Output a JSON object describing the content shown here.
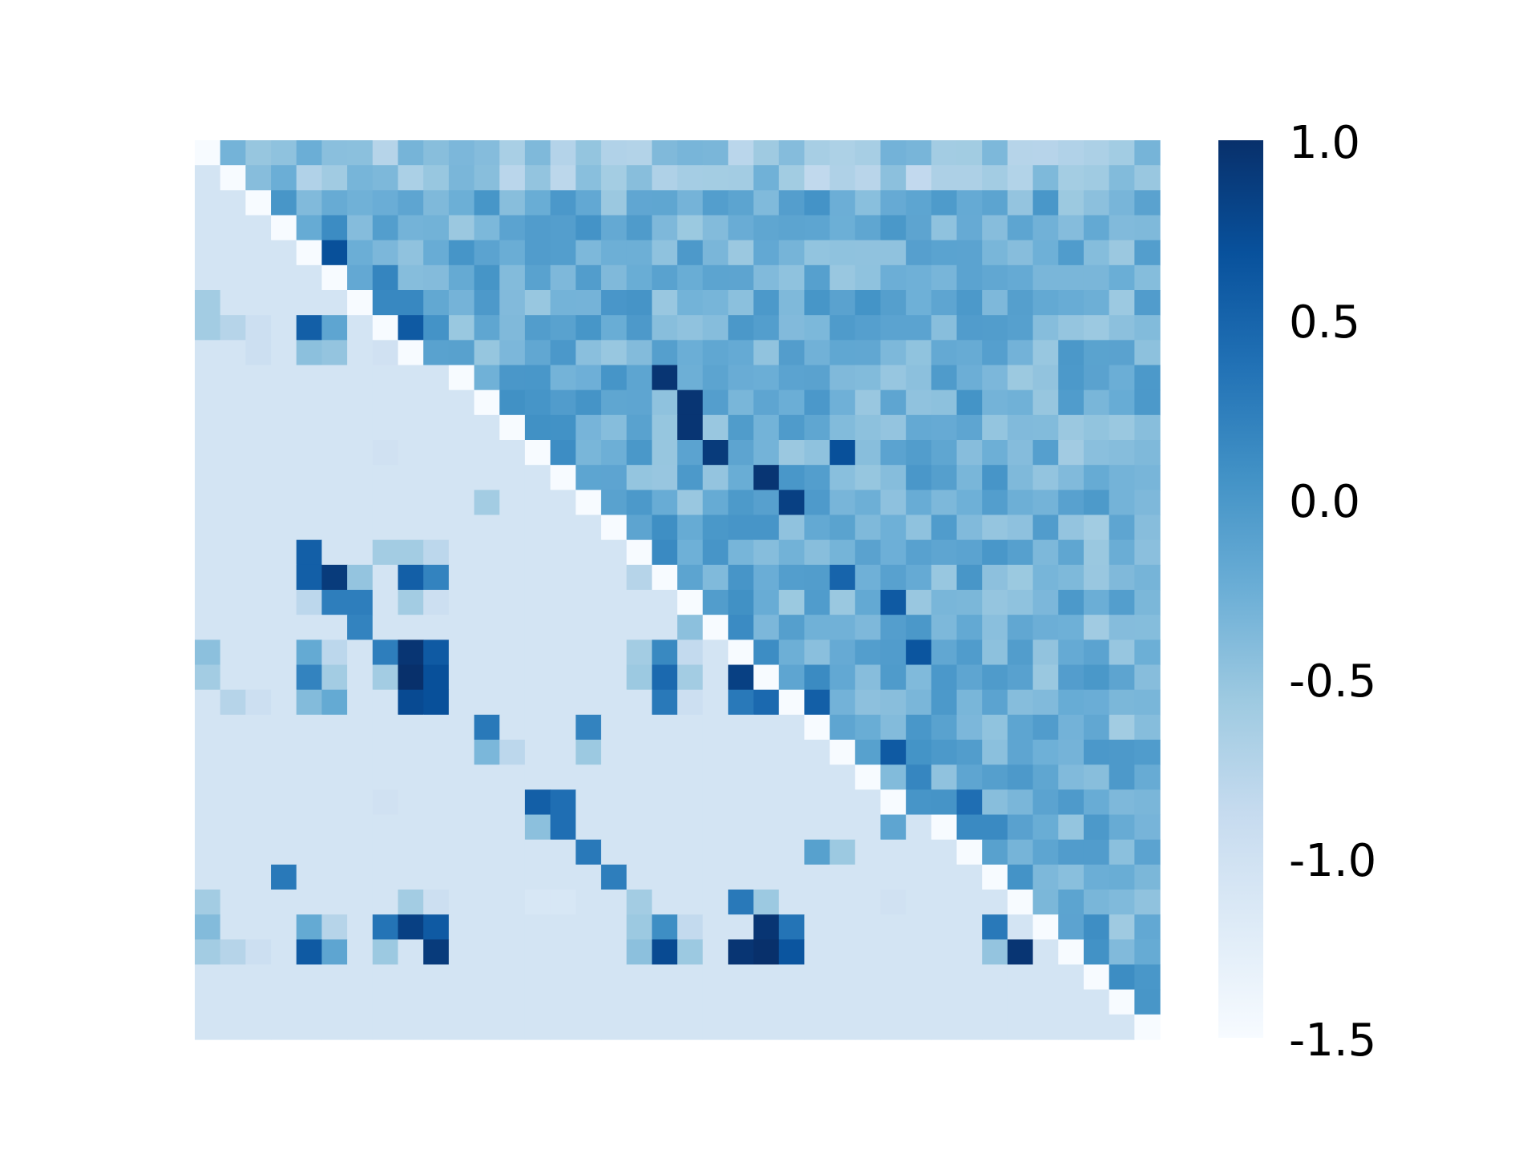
{
  "chart_data": {
    "type": "heatmap",
    "title": "",
    "xlabel": "",
    "ylabel": "",
    "rows": 36,
    "cols": 38,
    "colormap": "Blues",
    "colorbar": {
      "vmin": -1.5,
      "vmax": 1.0,
      "ticks": [
        1.0,
        0.5,
        0.0,
        -0.5,
        -1.0,
        -1.5
      ],
      "tick_labels": [
        "1.0",
        "0.5",
        "0.0",
        "-0.5",
        "-1.0",
        "-1.5"
      ]
    },
    "colors": {
      "low": "#f7fbff",
      "high": "#08306b",
      "lower_triangle_background": "#d1e2f2"
    },
    "lower_triangle_fill_value": -1.05,
    "lower_triangle_cells": [
      [
        6,
        0,
        -0.6
      ],
      [
        7,
        0,
        -0.6
      ],
      [
        7,
        1,
        -0.75
      ],
      [
        7,
        2,
        -0.95
      ],
      [
        7,
        4,
        0.55
      ],
      [
        7,
        5,
        -0.15
      ],
      [
        7,
        7,
        -0.65
      ],
      [
        8,
        2,
        -0.95
      ],
      [
        8,
        4,
        -0.45
      ],
      [
        8,
        5,
        -0.5
      ],
      [
        8,
        7,
        -1.0
      ],
      [
        8,
        8,
        0.8
      ],
      [
        12,
        7,
        -1.0
      ],
      [
        14,
        11,
        -0.6
      ],
      [
        16,
        4,
        0.55
      ],
      [
        16,
        7,
        -0.6
      ],
      [
        16,
        8,
        -0.6
      ],
      [
        16,
        9,
        -0.8
      ],
      [
        17,
        4,
        0.55
      ],
      [
        17,
        5,
        0.9
      ],
      [
        17,
        6,
        -0.5
      ],
      [
        17,
        8,
        0.55
      ],
      [
        17,
        9,
        0.2
      ],
      [
        17,
        17,
        -0.75
      ],
      [
        18,
        4,
        -0.8
      ],
      [
        18,
        5,
        0.25
      ],
      [
        18,
        6,
        0.25
      ],
      [
        18,
        8,
        -0.6
      ],
      [
        18,
        9,
        -0.95
      ],
      [
        18,
        19,
        -0.05
      ],
      [
        19,
        6,
        0.2
      ],
      [
        19,
        19,
        -0.45
      ],
      [
        20,
        0,
        -0.45
      ],
      [
        20,
        4,
        -0.2
      ],
      [
        20,
        5,
        -0.8
      ],
      [
        20,
        7,
        0.25
      ],
      [
        20,
        8,
        0.95
      ],
      [
        20,
        9,
        0.6
      ],
      [
        20,
        17,
        -0.6
      ],
      [
        20,
        18,
        0.15
      ],
      [
        20,
        19,
        -0.85
      ],
      [
        21,
        0,
        -0.6
      ],
      [
        21,
        4,
        0.2
      ],
      [
        21,
        5,
        -0.6
      ],
      [
        21,
        7,
        -0.6
      ],
      [
        21,
        8,
        1.0
      ],
      [
        21,
        9,
        0.7
      ],
      [
        21,
        17,
        -0.55
      ],
      [
        21,
        18,
        0.45
      ],
      [
        21,
        19,
        -0.6
      ],
      [
        21,
        21,
        0.85
      ],
      [
        22,
        1,
        -0.75
      ],
      [
        22,
        2,
        -0.95
      ],
      [
        22,
        4,
        -0.4
      ],
      [
        22,
        5,
        -0.2
      ],
      [
        22,
        8,
        0.75
      ],
      [
        22,
        9,
        0.7
      ],
      [
        22,
        18,
        0.3
      ],
      [
        22,
        19,
        -0.95
      ],
      [
        22,
        21,
        0.3
      ],
      [
        22,
        22,
        0.45
      ],
      [
        23,
        11,
        0.3
      ],
      [
        23,
        15,
        0.2
      ],
      [
        24,
        11,
        -0.35
      ],
      [
        24,
        12,
        -0.8
      ],
      [
        24,
        15,
        -0.55
      ],
      [
        24,
        25,
        -0.3
      ],
      [
        25,
        26,
        -1.1
      ],
      [
        26,
        7,
        -1.0
      ],
      [
        26,
        13,
        0.55
      ],
      [
        26,
        14,
        0.4
      ],
      [
        27,
        13,
        -0.45
      ],
      [
        27,
        14,
        0.4
      ],
      [
        27,
        27,
        -0.15
      ],
      [
        28,
        15,
        0.3
      ],
      [
        28,
        24,
        -0.1
      ],
      [
        28,
        25,
        -0.55
      ],
      [
        29,
        3,
        0.3
      ],
      [
        29,
        16,
        0.25
      ],
      [
        30,
        0,
        -0.6
      ],
      [
        30,
        8,
        -0.6
      ],
      [
        30,
        9,
        -0.95
      ],
      [
        30,
        13,
        -1.1
      ],
      [
        30,
        14,
        -1.1
      ],
      [
        30,
        17,
        -0.6
      ],
      [
        30,
        21,
        0.3
      ],
      [
        30,
        22,
        -0.55
      ],
      [
        30,
        27,
        -1.0
      ],
      [
        31,
        0,
        -0.4
      ],
      [
        31,
        4,
        -0.2
      ],
      [
        31,
        5,
        -0.75
      ],
      [
        31,
        7,
        0.35
      ],
      [
        31,
        8,
        0.85
      ],
      [
        31,
        9,
        0.6
      ],
      [
        31,
        17,
        -0.55
      ],
      [
        31,
        18,
        0.1
      ],
      [
        31,
        19,
        -0.85
      ],
      [
        31,
        22,
        0.95
      ],
      [
        31,
        23,
        0.35
      ],
      [
        31,
        31,
        0.3
      ],
      [
        31,
        33,
        0.9
      ],
      [
        32,
        0,
        -0.6
      ],
      [
        32,
        1,
        -0.75
      ],
      [
        32,
        2,
        -0.95
      ],
      [
        32,
        4,
        0.6
      ],
      [
        32,
        5,
        -0.15
      ],
      [
        32,
        7,
        -0.55
      ],
      [
        32,
        9,
        0.9
      ],
      [
        32,
        17,
        -0.45
      ],
      [
        32,
        18,
        0.75
      ],
      [
        32,
        19,
        -0.55
      ],
      [
        32,
        21,
        0.95
      ],
      [
        32,
        22,
        1.0
      ],
      [
        32,
        23,
        0.65
      ],
      [
        32,
        31,
        -0.5
      ],
      [
        32,
        32,
        0.95
      ],
      [
        35,
        37,
        -0.25
      ]
    ],
    "upper_triangle_note": "upper triangle cells generated by page script as values in roughly -0.9 to 1.0 range with local hot spots"
  }
}
